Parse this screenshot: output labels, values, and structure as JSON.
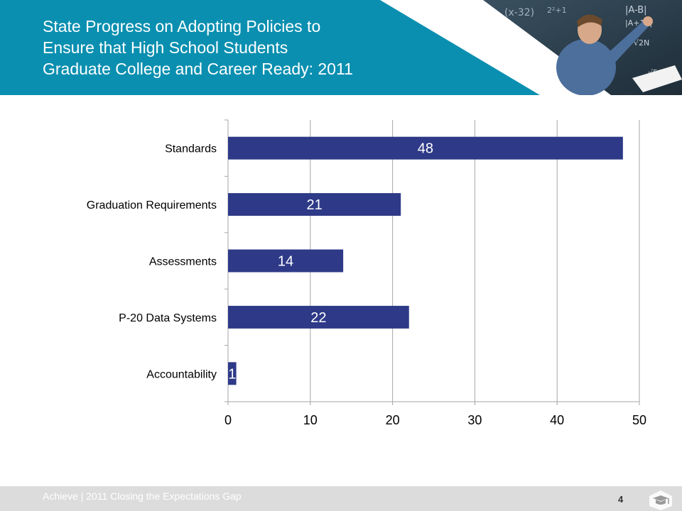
{
  "header": {
    "title_lines": [
      "State Progress on Adopting Policies to",
      "Ensure that High School Students",
      "Graduate College and Career Ready: 2011"
    ],
    "colors": {
      "band": "#0a8fb0",
      "photo": "#2a3d4a"
    },
    "photo_icon": "teacher-at-chalkboard-photo"
  },
  "chart_data": {
    "type": "bar",
    "orientation": "horizontal",
    "title": "",
    "xlabel": "",
    "ylabel": "",
    "categories": [
      "Standards",
      "Graduation Requirements",
      "Assessments",
      "P-20 Data Systems",
      "Accountability"
    ],
    "values": [
      48,
      21,
      14,
      22,
      1
    ],
    "data_labels": [
      "48",
      "21",
      "14",
      "22",
      "1"
    ],
    "xlim": [
      0,
      50
    ],
    "xticks": [
      0,
      10,
      20,
      30,
      40,
      50
    ],
    "xtick_labels": [
      "0",
      "10",
      "20",
      "30",
      "40",
      "50"
    ],
    "grid": "vertical",
    "legend": "none",
    "colors": {
      "bar": "#2e3a87",
      "grid": "#a6a6a6",
      "label_text": "#ffffff"
    }
  },
  "footer": {
    "text": "Achieve | 2011 Closing the Expectations Gap",
    "page_number": "4",
    "logo_icon": "graduation-cap-cube-icon"
  }
}
